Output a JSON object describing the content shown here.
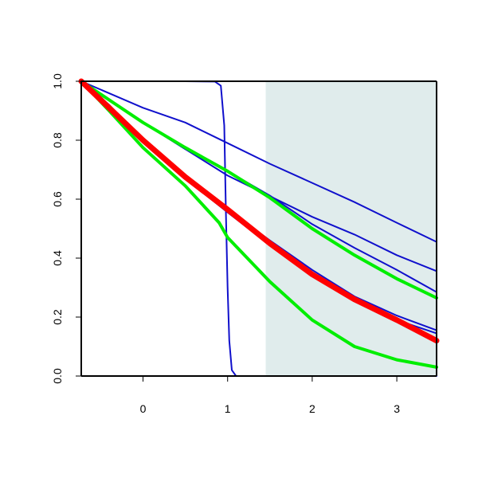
{
  "chart_data": {
    "type": "line",
    "title": "",
    "xlabel": "",
    "ylabel": "",
    "xlim": [
      -0.73,
      3.47
    ],
    "ylim": [
      0.0,
      1.0
    ],
    "x_ticks": [
      0,
      1,
      2,
      3
    ],
    "x_tick_labels": [
      "0",
      "1",
      "2",
      "3"
    ],
    "y_ticks": [
      0.0,
      0.2,
      0.4,
      0.6,
      0.8,
      1.0
    ],
    "y_tick_labels": [
      "0.0",
      "0.2",
      "0.4",
      "0.6",
      "0.8",
      "1.0"
    ],
    "grid": false,
    "legend": "none",
    "shaded_region": {
      "x": [
        1.45,
        3.47
      ],
      "color": "#e0ecec"
    },
    "colors": {
      "blue": "#1010cc",
      "red": "#ff0000",
      "green": "#00ee00",
      "axis": "#000000"
    },
    "series": [
      {
        "color": "#1010cc",
        "width": 2,
        "points": [
          [
            -0.73,
            1.0
          ],
          [
            0.0,
            0.86
          ],
          [
            0.5,
            0.77
          ],
          [
            1.0,
            0.68
          ],
          [
            1.5,
            0.61
          ],
          [
            2.0,
            0.54
          ],
          [
            2.5,
            0.48
          ],
          [
            3.0,
            0.41
          ],
          [
            3.47,
            0.356
          ]
        ]
      },
      {
        "color": "#1010cc",
        "width": 2,
        "points": [
          [
            -0.73,
            1.0
          ],
          [
            0.0,
            0.86
          ],
          [
            0.5,
            0.77
          ],
          [
            1.0,
            0.695
          ],
          [
            1.5,
            0.612
          ],
          [
            2.0,
            0.515
          ],
          [
            2.5,
            0.435
          ],
          [
            3.0,
            0.36
          ],
          [
            3.47,
            0.285
          ]
        ]
      },
      {
        "color": "#1010cc",
        "width": 2,
        "points": [
          [
            -0.73,
            1.0
          ],
          [
            -0.4,
            0.91
          ],
          [
            0.0,
            0.805
          ],
          [
            0.5,
            0.68
          ],
          [
            1.0,
            0.565
          ],
          [
            1.5,
            0.46
          ],
          [
            2.0,
            0.36
          ],
          [
            2.5,
            0.27
          ],
          [
            3.0,
            0.205
          ],
          [
            3.47,
            0.155
          ]
        ]
      },
      {
        "color": "#1010cc",
        "width": 2,
        "points": [
          [
            -0.73,
            1.0
          ],
          [
            -0.4,
            0.92
          ],
          [
            0.0,
            0.8
          ],
          [
            0.5,
            0.67
          ],
          [
            1.0,
            0.555
          ],
          [
            1.5,
            0.445
          ],
          [
            2.0,
            0.34
          ],
          [
            2.5,
            0.26
          ],
          [
            3.0,
            0.19
          ],
          [
            3.47,
            0.145
          ]
        ]
      },
      {
        "color": "#1010cc",
        "width": 2,
        "points": [
          [
            -0.73,
            1.0
          ],
          [
            0.0,
            0.91
          ],
          [
            0.5,
            0.86
          ],
          [
            1.0,
            0.79
          ],
          [
            1.5,
            0.72
          ],
          [
            2.0,
            0.655
          ],
          [
            2.5,
            0.59
          ],
          [
            3.0,
            0.52
          ],
          [
            3.47,
            0.455
          ]
        ]
      },
      {
        "color": "#1010cc",
        "width": 2,
        "points": [
          [
            -0.73,
            1.0
          ],
          [
            0.0,
            1.0
          ],
          [
            0.5,
            1.0
          ],
          [
            0.85,
            0.999
          ],
          [
            0.92,
            0.985
          ],
          [
            0.96,
            0.85
          ],
          [
            0.98,
            0.55
          ],
          [
            1.0,
            0.3
          ],
          [
            1.02,
            0.12
          ],
          [
            1.05,
            0.02
          ],
          [
            1.1,
            0.0
          ],
          [
            1.5,
            0.0
          ],
          [
            2.0,
            0.0
          ],
          [
            3.47,
            0.0
          ]
        ]
      },
      {
        "color": "#00ee00",
        "width": 4,
        "points": [
          [
            -0.73,
            1.0
          ],
          [
            0.0,
            0.86
          ],
          [
            0.5,
            0.775
          ],
          [
            1.0,
            0.695
          ],
          [
            1.5,
            0.605
          ],
          [
            2.0,
            0.5
          ],
          [
            2.5,
            0.41
          ],
          [
            3.0,
            0.33
          ],
          [
            3.47,
            0.265
          ]
        ]
      },
      {
        "color": "#00ee00",
        "width": 4,
        "points": [
          [
            -0.73,
            1.0
          ],
          [
            -0.4,
            0.9
          ],
          [
            0.0,
            0.775
          ],
          [
            0.5,
            0.645
          ],
          [
            0.9,
            0.52
          ],
          [
            1.0,
            0.47
          ],
          [
            1.5,
            0.32
          ],
          [
            2.0,
            0.19
          ],
          [
            2.5,
            0.1
          ],
          [
            3.0,
            0.055
          ],
          [
            3.47,
            0.03
          ]
        ]
      },
      {
        "color": "#ff0000",
        "width": 7,
        "points": [
          [
            -0.73,
            1.0
          ],
          [
            -0.4,
            0.91
          ],
          [
            0.0,
            0.8
          ],
          [
            0.5,
            0.675
          ],
          [
            1.0,
            0.565
          ],
          [
            1.5,
            0.45
          ],
          [
            2.0,
            0.345
          ],
          [
            2.5,
            0.26
          ],
          [
            3.0,
            0.19
          ],
          [
            3.47,
            0.12
          ]
        ]
      }
    ]
  }
}
